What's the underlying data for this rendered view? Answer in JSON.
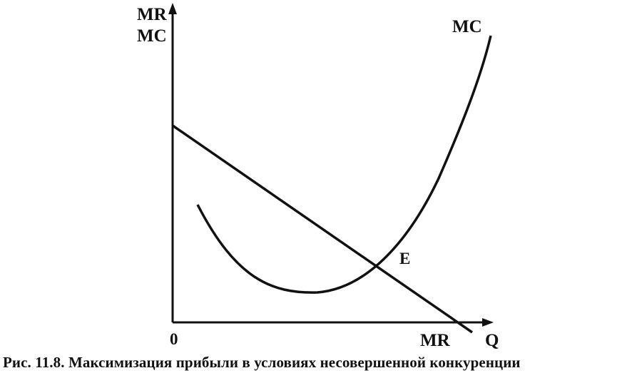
{
  "diagram": {
    "y_axis_label_line1": "MR",
    "y_axis_label_line2": "MC",
    "x_axis_label": "Q",
    "origin_label": "0",
    "mc_curve_label": "MC",
    "mr_line_label": "MR",
    "equilibrium_label": "E"
  },
  "caption": "Рис. 11.8. Максимизация прибыли в условиях несовершенной конкуренции",
  "colors": {
    "ink": "#111111",
    "background": "#ffffff"
  }
}
